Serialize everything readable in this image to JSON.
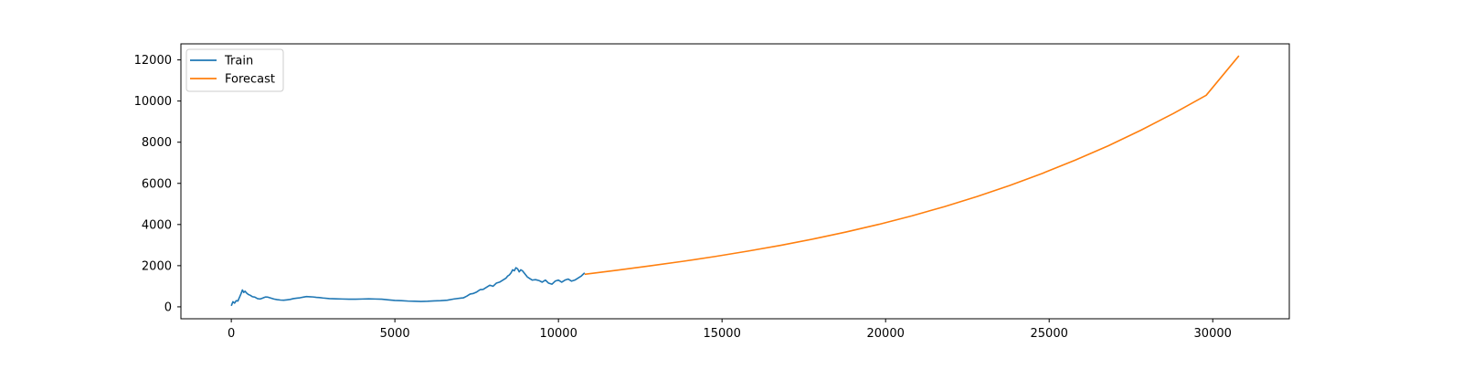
{
  "chart_data": {
    "type": "line",
    "title": "",
    "xlabel": "",
    "ylabel": "",
    "xlim": [
      -1540,
      32340
    ],
    "ylim": [
      -580,
      12780
    ],
    "xticks": [
      0,
      5000,
      10000,
      15000,
      20000,
      25000,
      30000
    ],
    "yticks": [
      0,
      2000,
      4000,
      6000,
      8000,
      10000,
      12000
    ],
    "grid": false,
    "legend": {
      "position": "upper-left",
      "entries": [
        "Train",
        "Forecast"
      ]
    },
    "series": [
      {
        "name": "Train",
        "color": "#1f77b4",
        "x": [
          0,
          50,
          100,
          150,
          200,
          260,
          300,
          340,
          380,
          420,
          460,
          520,
          580,
          650,
          720,
          800,
          880,
          950,
          1000,
          1050,
          1120,
          1200,
          1300,
          1400,
          1500,
          1600,
          1700,
          1800,
          1900,
          2000,
          2100,
          2200,
          2300,
          2400,
          2500,
          2600,
          2700,
          2800,
          3000,
          3200,
          3400,
          3600,
          3800,
          4000,
          4200,
          4400,
          4600,
          4800,
          5000,
          5200,
          5400,
          5600,
          5800,
          6000,
          6200,
          6400,
          6600,
          6800,
          7000,
          7100,
          7200,
          7300,
          7400,
          7500,
          7600,
          7700,
          7800,
          7900,
          8000,
          8100,
          8200,
          8300,
          8400,
          8450,
          8500,
          8550,
          8600,
          8650,
          8700,
          8750,
          8800,
          8850,
          8900,
          8950,
          9000,
          9050,
          9100,
          9150,
          9200,
          9300,
          9400,
          9500,
          9600,
          9700,
          9800,
          9900,
          10000,
          10100,
          10200,
          10300,
          10400,
          10500,
          10600,
          10700,
          10800
        ],
        "y": [
          50,
          250,
          180,
          300,
          280,
          500,
          650,
          820,
          700,
          760,
          680,
          600,
          560,
          490,
          470,
          400,
          380,
          420,
          450,
          480,
          470,
          430,
          380,
          350,
          330,
          320,
          340,
          360,
          400,
          420,
          440,
          470,
          500,
          490,
          480,
          460,
          450,
          430,
          400,
          390,
          380,
          370,
          370,
          380,
          390,
          380,
          370,
          340,
          310,
          300,
          280,
          270,
          260,
          270,
          290,
          300,
          320,
          380,
          420,
          440,
          520,
          620,
          650,
          720,
          830,
          850,
          950,
          1050,
          1000,
          1150,
          1200,
          1300,
          1400,
          1500,
          1550,
          1650,
          1800,
          1750,
          1900,
          1850,
          1700,
          1800,
          1750,
          1650,
          1550,
          1450,
          1400,
          1350,
          1300,
          1320,
          1280,
          1200,
          1300,
          1150,
          1100,
          1250,
          1300,
          1200,
          1300,
          1350,
          1250,
          1300,
          1400,
          1500,
          1650
        ]
      },
      {
        "name": "Forecast",
        "color": "#ff7f0e",
        "x": [
          10800,
          11800,
          12800,
          13800,
          14800,
          15800,
          16800,
          17800,
          18800,
          19800,
          20800,
          21800,
          22800,
          23800,
          24800,
          25800,
          26800,
          27800,
          28800,
          29800,
          30800
        ],
        "y": [
          1580,
          1780,
          1990,
          2210,
          2450,
          2710,
          2990,
          3300,
          3640,
          4010,
          4420,
          4870,
          5360,
          5900,
          6490,
          7130,
          7820,
          8580,
          9400,
          10280,
          12200
        ]
      }
    ]
  }
}
